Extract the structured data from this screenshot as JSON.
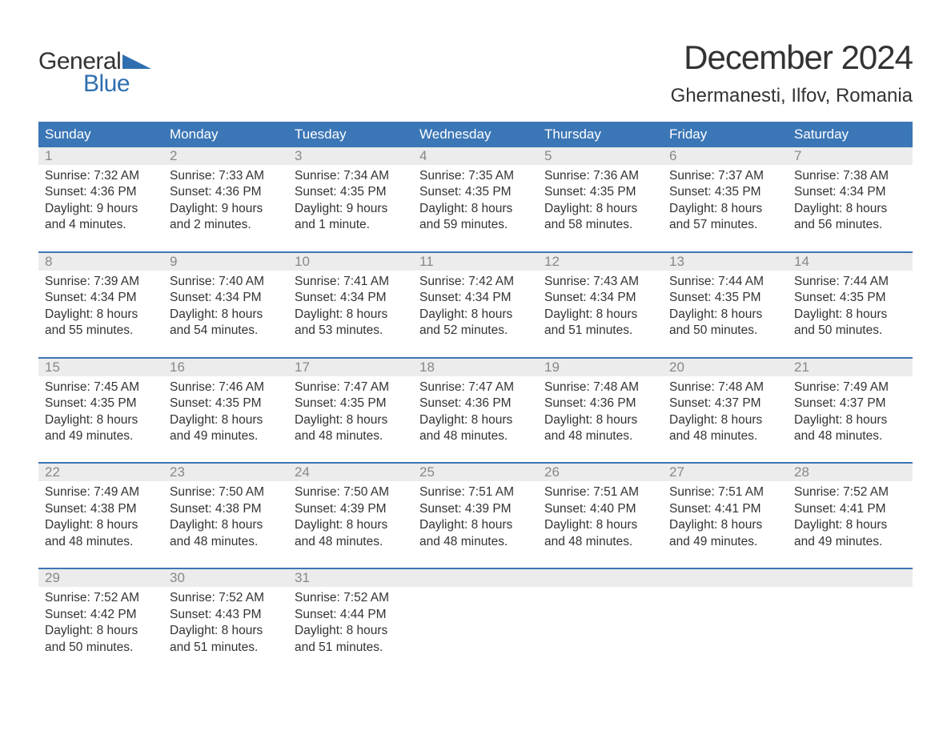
{
  "brand": {
    "word1": "General",
    "word2": "Blue",
    "word1_color": "#333333",
    "word2_color": "#2f6fb0",
    "triangle_color": "#2f6fb0"
  },
  "title": "December 2024",
  "location": "Ghermanesti, Ilfov, Romania",
  "colors": {
    "header_bg": "#3b76b6",
    "header_text": "#ffffff",
    "daynum_bg": "#ececec",
    "daynum_text": "#888888",
    "body_text": "#333333",
    "page_bg": "#ffffff",
    "week_border": "#3b76b6"
  },
  "typography": {
    "title_fontsize": 42,
    "location_fontsize": 24,
    "dayhead_fontsize": 17,
    "daynum_fontsize": 17,
    "daytext_fontsize": 15.5,
    "font_family": "Arial"
  },
  "day_headers": [
    "Sunday",
    "Monday",
    "Tuesday",
    "Wednesday",
    "Thursday",
    "Friday",
    "Saturday"
  ],
  "weeks": [
    [
      {
        "num": "1",
        "sunrise": "Sunrise: 7:32 AM",
        "sunset": "Sunset: 4:36 PM",
        "dl1": "Daylight: 9 hours",
        "dl2": "and 4 minutes."
      },
      {
        "num": "2",
        "sunrise": "Sunrise: 7:33 AM",
        "sunset": "Sunset: 4:36 PM",
        "dl1": "Daylight: 9 hours",
        "dl2": "and 2 minutes."
      },
      {
        "num": "3",
        "sunrise": "Sunrise: 7:34 AM",
        "sunset": "Sunset: 4:35 PM",
        "dl1": "Daylight: 9 hours",
        "dl2": "and 1 minute."
      },
      {
        "num": "4",
        "sunrise": "Sunrise: 7:35 AM",
        "sunset": "Sunset: 4:35 PM",
        "dl1": "Daylight: 8 hours",
        "dl2": "and 59 minutes."
      },
      {
        "num": "5",
        "sunrise": "Sunrise: 7:36 AM",
        "sunset": "Sunset: 4:35 PM",
        "dl1": "Daylight: 8 hours",
        "dl2": "and 58 minutes."
      },
      {
        "num": "6",
        "sunrise": "Sunrise: 7:37 AM",
        "sunset": "Sunset: 4:35 PM",
        "dl1": "Daylight: 8 hours",
        "dl2": "and 57 minutes."
      },
      {
        "num": "7",
        "sunrise": "Sunrise: 7:38 AM",
        "sunset": "Sunset: 4:34 PM",
        "dl1": "Daylight: 8 hours",
        "dl2": "and 56 minutes."
      }
    ],
    [
      {
        "num": "8",
        "sunrise": "Sunrise: 7:39 AM",
        "sunset": "Sunset: 4:34 PM",
        "dl1": "Daylight: 8 hours",
        "dl2": "and 55 minutes."
      },
      {
        "num": "9",
        "sunrise": "Sunrise: 7:40 AM",
        "sunset": "Sunset: 4:34 PM",
        "dl1": "Daylight: 8 hours",
        "dl2": "and 54 minutes."
      },
      {
        "num": "10",
        "sunrise": "Sunrise: 7:41 AM",
        "sunset": "Sunset: 4:34 PM",
        "dl1": "Daylight: 8 hours",
        "dl2": "and 53 minutes."
      },
      {
        "num": "11",
        "sunrise": "Sunrise: 7:42 AM",
        "sunset": "Sunset: 4:34 PM",
        "dl1": "Daylight: 8 hours",
        "dl2": "and 52 minutes."
      },
      {
        "num": "12",
        "sunrise": "Sunrise: 7:43 AM",
        "sunset": "Sunset: 4:34 PM",
        "dl1": "Daylight: 8 hours",
        "dl2": "and 51 minutes."
      },
      {
        "num": "13",
        "sunrise": "Sunrise: 7:44 AM",
        "sunset": "Sunset: 4:35 PM",
        "dl1": "Daylight: 8 hours",
        "dl2": "and 50 minutes."
      },
      {
        "num": "14",
        "sunrise": "Sunrise: 7:44 AM",
        "sunset": "Sunset: 4:35 PM",
        "dl1": "Daylight: 8 hours",
        "dl2": "and 50 minutes."
      }
    ],
    [
      {
        "num": "15",
        "sunrise": "Sunrise: 7:45 AM",
        "sunset": "Sunset: 4:35 PM",
        "dl1": "Daylight: 8 hours",
        "dl2": "and 49 minutes."
      },
      {
        "num": "16",
        "sunrise": "Sunrise: 7:46 AM",
        "sunset": "Sunset: 4:35 PM",
        "dl1": "Daylight: 8 hours",
        "dl2": "and 49 minutes."
      },
      {
        "num": "17",
        "sunrise": "Sunrise: 7:47 AM",
        "sunset": "Sunset: 4:35 PM",
        "dl1": "Daylight: 8 hours",
        "dl2": "and 48 minutes."
      },
      {
        "num": "18",
        "sunrise": "Sunrise: 7:47 AM",
        "sunset": "Sunset: 4:36 PM",
        "dl1": "Daylight: 8 hours",
        "dl2": "and 48 minutes."
      },
      {
        "num": "19",
        "sunrise": "Sunrise: 7:48 AM",
        "sunset": "Sunset: 4:36 PM",
        "dl1": "Daylight: 8 hours",
        "dl2": "and 48 minutes."
      },
      {
        "num": "20",
        "sunrise": "Sunrise: 7:48 AM",
        "sunset": "Sunset: 4:37 PM",
        "dl1": "Daylight: 8 hours",
        "dl2": "and 48 minutes."
      },
      {
        "num": "21",
        "sunrise": "Sunrise: 7:49 AM",
        "sunset": "Sunset: 4:37 PM",
        "dl1": "Daylight: 8 hours",
        "dl2": "and 48 minutes."
      }
    ],
    [
      {
        "num": "22",
        "sunrise": "Sunrise: 7:49 AM",
        "sunset": "Sunset: 4:38 PM",
        "dl1": "Daylight: 8 hours",
        "dl2": "and 48 minutes."
      },
      {
        "num": "23",
        "sunrise": "Sunrise: 7:50 AM",
        "sunset": "Sunset: 4:38 PM",
        "dl1": "Daylight: 8 hours",
        "dl2": "and 48 minutes."
      },
      {
        "num": "24",
        "sunrise": "Sunrise: 7:50 AM",
        "sunset": "Sunset: 4:39 PM",
        "dl1": "Daylight: 8 hours",
        "dl2": "and 48 minutes."
      },
      {
        "num": "25",
        "sunrise": "Sunrise: 7:51 AM",
        "sunset": "Sunset: 4:39 PM",
        "dl1": "Daylight: 8 hours",
        "dl2": "and 48 minutes."
      },
      {
        "num": "26",
        "sunrise": "Sunrise: 7:51 AM",
        "sunset": "Sunset: 4:40 PM",
        "dl1": "Daylight: 8 hours",
        "dl2": "and 48 minutes."
      },
      {
        "num": "27",
        "sunrise": "Sunrise: 7:51 AM",
        "sunset": "Sunset: 4:41 PM",
        "dl1": "Daylight: 8 hours",
        "dl2": "and 49 minutes."
      },
      {
        "num": "28",
        "sunrise": "Sunrise: 7:52 AM",
        "sunset": "Sunset: 4:41 PM",
        "dl1": "Daylight: 8 hours",
        "dl2": "and 49 minutes."
      }
    ],
    [
      {
        "num": "29",
        "sunrise": "Sunrise: 7:52 AM",
        "sunset": "Sunset: 4:42 PM",
        "dl1": "Daylight: 8 hours",
        "dl2": "and 50 minutes."
      },
      {
        "num": "30",
        "sunrise": "Sunrise: 7:52 AM",
        "sunset": "Sunset: 4:43 PM",
        "dl1": "Daylight: 8 hours",
        "dl2": "and 51 minutes."
      },
      {
        "num": "31",
        "sunrise": "Sunrise: 7:52 AM",
        "sunset": "Sunset: 4:44 PM",
        "dl1": "Daylight: 8 hours",
        "dl2": "and 51 minutes."
      },
      null,
      null,
      null,
      null
    ]
  ]
}
